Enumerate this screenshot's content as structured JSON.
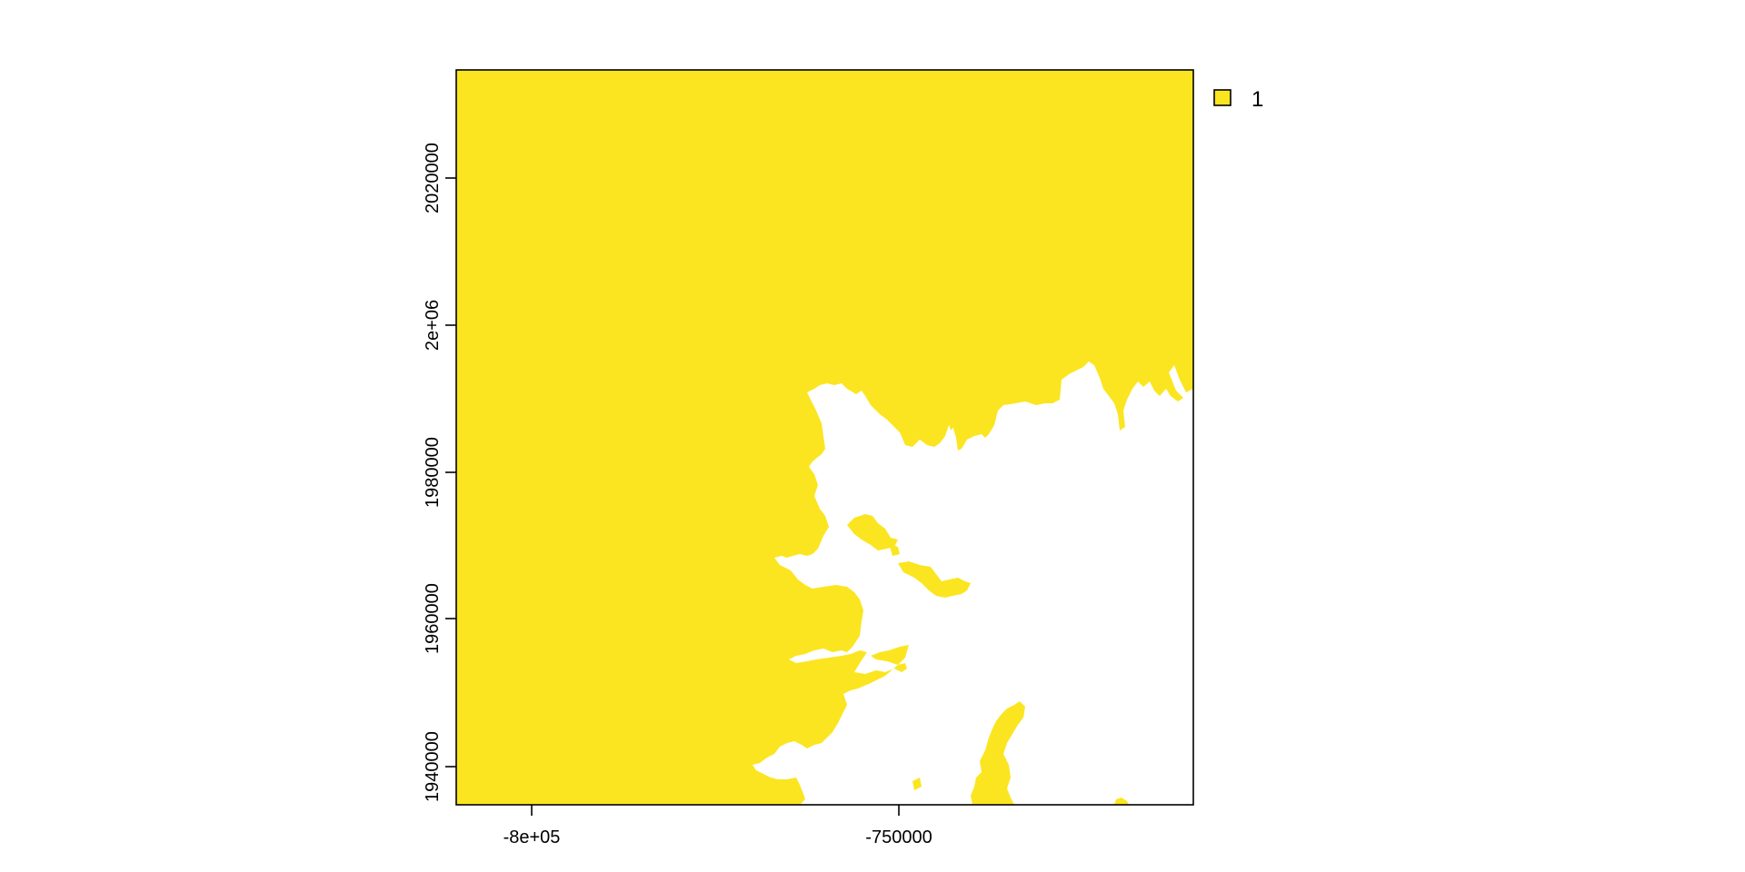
{
  "map": {
    "fill_color": "#FBE520",
    "background_color": "#FFFFFF",
    "frame_color": "#000000",
    "x_axis": {
      "ticks": [
        {
          "value": -800000,
          "label": "-8e+05"
        },
        {
          "value": -750000,
          "label": "-750000"
        }
      ]
    },
    "y_axis": {
      "ticks": [
        {
          "value": 1940000,
          "label": "1940000"
        },
        {
          "value": 1960000,
          "label": "1960000"
        },
        {
          "value": 1980000,
          "label": "1980000"
        },
        {
          "value": 2000000,
          "label": "2e+06"
        },
        {
          "value": 2020000,
          "label": "2020000"
        }
      ]
    },
    "legend": {
      "placement": "top-right",
      "items": [
        {
          "label": "1",
          "color": "#FBE520"
        }
      ]
    }
  }
}
